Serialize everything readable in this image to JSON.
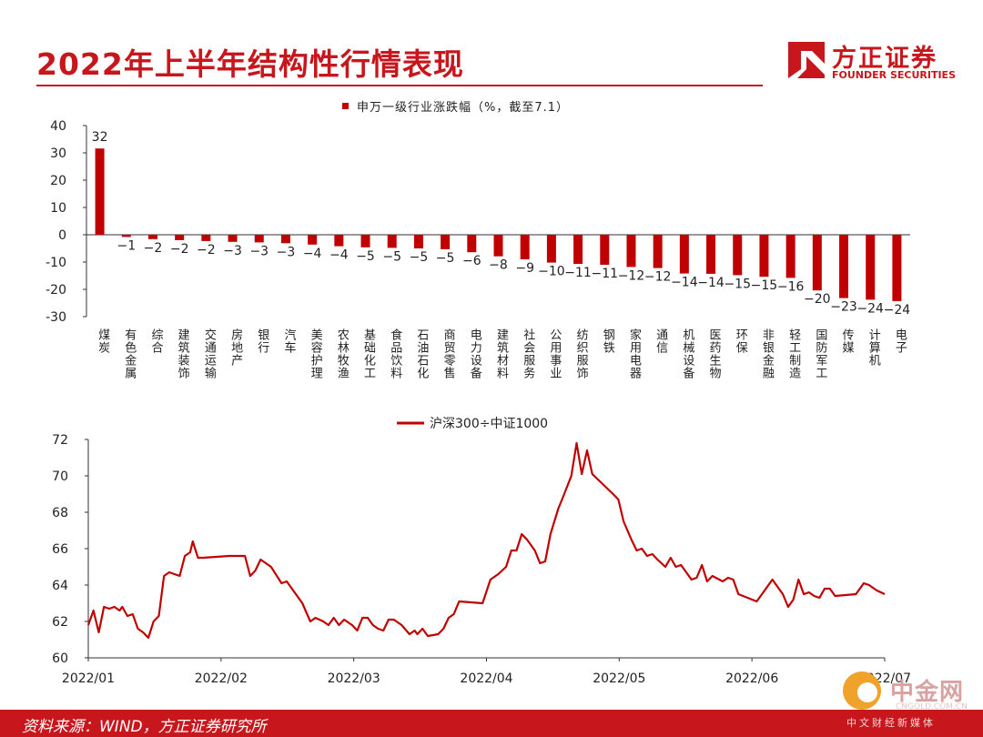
{
  "header": {
    "title": "2022年上半年结构性行情表现",
    "logo_cn": "方正证券",
    "logo_en": "FOUNDER SECURITIES",
    "brand_color": "#c8161d"
  },
  "footer": {
    "source": "资料来源：WIND，方正证券研究所"
  },
  "watermark": {
    "cn": "中金网",
    "en": "CNGOLD.COM.CN",
    "sub": "中文财经新媒体"
  },
  "chart_data": [
    {
      "type": "bar",
      "legend": "申万一级行业涨跌幅（%，截至7.1）",
      "categories": [
        "煤炭",
        "有色金属",
        "综合",
        "建筑装饰",
        "交通运输",
        "房地产",
        "银行",
        "汽车",
        "美容护理",
        "农林牧渔",
        "基础化工",
        "食品饮料",
        "石油石化",
        "商贸零售",
        "电力设备",
        "建筑材料",
        "社会服务",
        "公用事业",
        "纺织服饰",
        "钢铁",
        "家用电器",
        "通信",
        "机械设备",
        "医药生物",
        "环保",
        "非银金融",
        "轻工制造",
        "国防军工",
        "传媒",
        "计算机",
        "电子"
      ],
      "values": [
        32,
        -1,
        -2,
        -2,
        -2,
        -3,
        -3,
        -3,
        -4,
        -4,
        -5,
        -5,
        -5,
        -5,
        -6,
        -8,
        -9,
        -10,
        -11,
        -11,
        -12,
        -12,
        -14,
        -14,
        -15,
        -15,
        -16,
        -20,
        -23,
        -24,
        -24
      ],
      "heights": [
        31.6,
        -0.8,
        -1.6,
        -2.0,
        -2.3,
        -2.6,
        -2.8,
        -3.1,
        -3.6,
        -4.2,
        -4.6,
        -4.8,
        -5.0,
        -5.3,
        -6.4,
        -7.9,
        -9.0,
        -10.2,
        -10.7,
        -11.0,
        -11.8,
        -12.2,
        -14.2,
        -14.3,
        -14.8,
        -15.4,
        -15.8,
        -20.4,
        -23.2,
        -23.8,
        -24.3
      ],
      "yticks": [
        40,
        30,
        20,
        10,
        0,
        -10,
        -20,
        -30
      ],
      "ylim": [
        -30,
        40
      ],
      "color": "#c00000"
    },
    {
      "type": "line",
      "legend": "沪深300÷中证1000",
      "xticks": [
        "2022/01",
        "2022/02",
        "2022/03",
        "2022/04",
        "2022/05",
        "2022/06",
        "2022/07"
      ],
      "yticks": [
        72,
        70,
        68,
        66,
        64,
        62,
        60
      ],
      "ylim": [
        60,
        72
      ],
      "color": "#c00000",
      "points": [
        [
          0,
          61.8
        ],
        [
          2,
          62.6
        ],
        [
          4,
          61.4
        ],
        [
          6,
          62.8
        ],
        [
          8,
          62.7
        ],
        [
          10,
          62.8
        ],
        [
          12,
          62.6
        ],
        [
          13,
          62.8
        ],
        [
          15,
          62.3
        ],
        [
          17,
          62.4
        ],
        [
          19,
          61.6
        ],
        [
          21,
          61.4
        ],
        [
          23,
          61.1
        ],
        [
          25,
          62.0
        ],
        [
          27,
          62.3
        ],
        [
          29,
          64.5
        ],
        [
          31,
          64.7
        ],
        [
          33,
          64.6
        ],
        [
          35,
          64.5
        ],
        [
          37,
          65.6
        ],
        [
          39,
          65.8
        ],
        [
          40,
          66.4
        ],
        [
          42,
          65.5
        ],
        [
          44,
          65.5
        ],
        [
          54,
          65.6
        ],
        [
          60,
          65.6
        ],
        [
          62,
          64.5
        ],
        [
          64,
          64.8
        ],
        [
          66,
          65.4
        ],
        [
          70,
          65.0
        ],
        [
          74,
          64.1
        ],
        [
          76,
          64.2
        ],
        [
          80,
          63.4
        ],
        [
          82,
          63.0
        ],
        [
          85,
          62.0
        ],
        [
          87,
          62.2
        ],
        [
          90,
          62.0
        ],
        [
          92,
          61.8
        ],
        [
          94,
          62.2
        ],
        [
          96,
          61.8
        ],
        [
          98,
          62.1
        ],
        [
          101,
          61.8
        ],
        [
          103,
          61.5
        ],
        [
          105,
          62.2
        ],
        [
          107,
          62.2
        ],
        [
          109,
          61.8
        ],
        [
          111,
          61.6
        ],
        [
          113,
          61.5
        ],
        [
          115,
          62.1
        ],
        [
          117,
          62.1
        ],
        [
          120,
          61.8
        ],
        [
          123,
          61.3
        ],
        [
          125,
          61.5
        ],
        [
          126,
          61.3
        ],
        [
          128,
          61.6
        ],
        [
          130,
          61.2
        ],
        [
          134,
          61.3
        ],
        [
          136,
          61.6
        ],
        [
          138,
          62.2
        ],
        [
          140,
          62.4
        ],
        [
          142,
          63.1
        ],
        [
          151,
          63.0
        ],
        [
          154,
          64.3
        ],
        [
          157,
          64.6
        ],
        [
          160,
          65.0
        ],
        [
          162,
          65.9
        ],
        [
          164,
          65.9
        ],
        [
          166,
          66.8
        ],
        [
          168,
          66.5
        ],
        [
          171,
          65.9
        ],
        [
          173,
          65.2
        ],
        [
          175,
          65.3
        ],
        [
          177,
          66.8
        ],
        [
          180,
          68.2
        ],
        [
          182,
          68.9
        ],
        [
          185,
          70.0
        ],
        [
          187,
          71.8
        ],
        [
          189,
          70.1
        ],
        [
          191,
          71.4
        ],
        [
          193,
          70.1
        ],
        [
          201,
          69.0
        ],
        [
          203,
          68.7
        ],
        [
          205,
          67.5
        ],
        [
          208,
          66.5
        ],
        [
          210,
          65.9
        ],
        [
          212,
          66.0
        ],
        [
          214,
          65.6
        ],
        [
          216,
          65.7
        ],
        [
          218,
          65.4
        ],
        [
          221,
          65.0
        ],
        [
          223,
          65.5
        ],
        [
          225,
          65.0
        ],
        [
          227,
          65.1
        ],
        [
          229,
          64.7
        ],
        [
          231,
          64.3
        ],
        [
          233,
          64.4
        ],
        [
          235,
          65.1
        ],
        [
          237,
          64.2
        ],
        [
          239,
          64.5
        ],
        [
          243,
          64.2
        ],
        [
          245,
          64.4
        ],
        [
          247,
          64.3
        ],
        [
          249,
          63.5
        ],
        [
          256,
          63.1
        ],
        [
          259,
          63.7
        ],
        [
          262,
          64.3
        ],
        [
          266,
          63.5
        ],
        [
          268,
          62.8
        ],
        [
          270,
          63.2
        ],
        [
          272,
          64.3
        ],
        [
          274,
          63.5
        ],
        [
          276,
          63.6
        ],
        [
          278,
          63.4
        ],
        [
          280,
          63.3
        ],
        [
          282,
          63.8
        ],
        [
          284,
          63.8
        ],
        [
          286,
          63.4
        ],
        [
          294,
          63.5
        ],
        [
          297,
          64.1
        ],
        [
          299,
          64.0
        ],
        [
          302,
          63.7
        ],
        [
          305,
          63.5
        ]
      ]
    }
  ]
}
